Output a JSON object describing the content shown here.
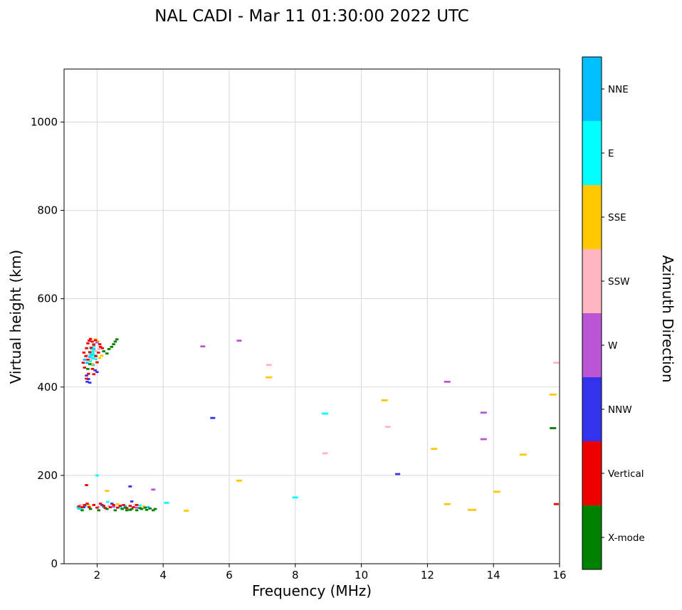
{
  "chart_data": {
    "type": "scatter",
    "title": "NAL CADI - Mar 11 01:30:00 2022 UTC",
    "xlabel": "Frequency (MHz)",
    "ylabel": "Virtual height (km)",
    "xlim": [
      1,
      16
    ],
    "ylim": [
      0,
      1120
    ],
    "xticks": [
      2,
      4,
      6,
      8,
      10,
      12,
      14,
      16
    ],
    "yticks": [
      0,
      200,
      400,
      600,
      800,
      1000
    ],
    "grid": true,
    "grid_color": "#d9d9d9",
    "colorbar": {
      "label": "Azimuth Direction",
      "categories": [
        {
          "label": "NNE",
          "color": "#00BFFF"
        },
        {
          "label": "E",
          "color": "#00FFFF"
        },
        {
          "label": "SSE",
          "color": "#FFC800"
        },
        {
          "label": "SSW",
          "color": "#FFB6C1"
        },
        {
          "label": "W",
          "color": "#BA55D3"
        },
        {
          "label": "NNW",
          "color": "#3333EE"
        },
        {
          "label": "Vertical",
          "color": "#EE0000"
        },
        {
          "label": "X-mode",
          "color": "#008000"
        }
      ]
    },
    "series": [
      {
        "name": "NNE",
        "color": "#00BFFF",
        "points": [
          [
            1.78,
            468
          ],
          [
            1.82,
            474
          ],
          [
            1.9,
            486
          ],
          [
            1.7,
            455
          ],
          [
            1.62,
            462
          ],
          [
            1.88,
            450
          ],
          [
            1.45,
            125
          ],
          [
            2.2,
            128
          ],
          [
            2.85,
            130
          ],
          [
            3.55,
            128
          ]
        ]
      },
      {
        "name": "E",
        "color": "#00FFFF",
        "points": [
          [
            1.82,
            470,
            6
          ],
          [
            1.86,
            476,
            6
          ],
          [
            1.9,
            481,
            6
          ],
          [
            1.93,
            472,
            6
          ],
          [
            1.87,
            465,
            6
          ],
          [
            1.84,
            486,
            5
          ],
          [
            1.9,
            492,
            4
          ],
          [
            1.96,
            463,
            4
          ],
          [
            1.8,
            458,
            4
          ],
          [
            1.88,
            496,
            3
          ],
          [
            1.78,
            478,
            4
          ],
          [
            1.42,
            128
          ],
          [
            1.52,
            124
          ],
          [
            1.65,
            131
          ],
          [
            2.0,
            200,
            5
          ],
          [
            2.32,
            140
          ],
          [
            3.3,
            132
          ],
          [
            4.1,
            138,
            7
          ],
          [
            2.72,
            127
          ],
          [
            8.0,
            150,
            8
          ],
          [
            8.9,
            340,
            9
          ]
        ]
      },
      {
        "name": "SSE",
        "color": "#FFC800",
        "points": [
          [
            1.86,
            452
          ],
          [
            2.08,
            466
          ],
          [
            2.14,
            471
          ],
          [
            1.95,
            508
          ],
          [
            2.02,
            504
          ],
          [
            1.75,
            133
          ],
          [
            2.3,
            165,
            6
          ],
          [
            2.62,
            135
          ],
          [
            3.42,
            130
          ],
          [
            4.7,
            120,
            7
          ],
          [
            6.3,
            188,
            8
          ],
          [
            7.2,
            422,
            9
          ],
          [
            10.7,
            370,
            9
          ],
          [
            12.2,
            260,
            9
          ],
          [
            12.6,
            135,
            9
          ],
          [
            13.35,
            122,
            12
          ],
          [
            14.1,
            163,
            10
          ],
          [
            14.9,
            247,
            10
          ],
          [
            15.8,
            383,
            10
          ]
        ]
      },
      {
        "name": "SSW",
        "color": "#FFB6C1",
        "points": [
          [
            1.8,
            462
          ],
          [
            1.96,
            481
          ],
          [
            2.06,
            486
          ],
          [
            1.7,
            472
          ],
          [
            1.5,
            133
          ],
          [
            2.05,
            129
          ],
          [
            2.36,
            131
          ],
          [
            3.15,
            133
          ],
          [
            7.2,
            450,
            8
          ],
          [
            8.9,
            250,
            8
          ],
          [
            10.8,
            310,
            8
          ],
          [
            15.9,
            455,
            8
          ]
        ]
      },
      {
        "name": "W",
        "color": "#BA55D3",
        "points": [
          [
            1.9,
            497
          ],
          [
            2.0,
            501
          ],
          [
            2.5,
            129
          ],
          [
            3.2,
            127
          ],
          [
            3.7,
            168,
            6
          ],
          [
            5.2,
            492,
            7
          ],
          [
            6.3,
            505,
            7
          ],
          [
            12.6,
            412,
            9
          ],
          [
            13.7,
            342,
            9
          ],
          [
            13.7,
            282,
            9
          ]
        ]
      },
      {
        "name": "NNW",
        "color": "#3333EE",
        "points": [
          [
            1.7,
            412
          ],
          [
            1.74,
            418
          ],
          [
            1.68,
            426
          ],
          [
            1.94,
            438
          ],
          [
            2.0,
            434
          ],
          [
            1.78,
            410
          ],
          [
            1.6,
            128
          ],
          [
            2.15,
            133
          ],
          [
            3.0,
            175,
            5
          ],
          [
            3.05,
            141
          ],
          [
            2.45,
            136
          ],
          [
            5.5,
            330,
            7
          ],
          [
            11.1,
            203,
            7
          ]
        ]
      },
      {
        "name": "Vertical",
        "color": "#EE0000",
        "points": [
          [
            1.62,
            444
          ],
          [
            1.66,
            470
          ],
          [
            1.68,
            488
          ],
          [
            1.72,
            499
          ],
          [
            1.76,
            505
          ],
          [
            1.8,
            509
          ],
          [
            1.85,
            503
          ],
          [
            1.9,
            496
          ],
          [
            1.72,
            462
          ],
          [
            1.78,
            479
          ],
          [
            1.82,
            489
          ],
          [
            1.96,
            470
          ],
          [
            2.0,
            456
          ],
          [
            1.86,
            441
          ],
          [
            1.74,
            430
          ],
          [
            1.68,
            419
          ],
          [
            1.9,
            429
          ],
          [
            2.04,
            478
          ],
          [
            2.1,
            491
          ],
          [
            1.95,
            506
          ],
          [
            2.08,
            497
          ],
          [
            1.58,
            455
          ],
          [
            1.6,
            478
          ],
          [
            2.16,
            488
          ],
          [
            1.45,
            130
          ],
          [
            1.55,
            128
          ],
          [
            1.62,
            133
          ],
          [
            1.7,
            136
          ],
          [
            1.76,
            128
          ],
          [
            1.9,
            133
          ],
          [
            2.0,
            127
          ],
          [
            2.1,
            136
          ],
          [
            2.2,
            131
          ],
          [
            2.4,
            128
          ],
          [
            2.5,
            133
          ],
          [
            2.62,
            127
          ],
          [
            2.8,
            133
          ],
          [
            2.9,
            126
          ],
          [
            3.0,
            131
          ],
          [
            3.1,
            128
          ],
          [
            1.68,
            178
          ],
          [
            2.25,
            126
          ],
          [
            2.7,
            131
          ],
          [
            3.2,
            133
          ],
          [
            15.9,
            135,
            7
          ]
        ]
      },
      {
        "name": "X-mode",
        "color": "#008000",
        "points": [
          [
            2.44,
            491
          ],
          [
            2.5,
            497
          ],
          [
            2.55,
            503
          ],
          [
            2.6,
            508
          ],
          [
            2.36,
            486
          ],
          [
            2.2,
            481
          ],
          [
            1.78,
            452
          ],
          [
            1.72,
            441
          ],
          [
            2.3,
            476
          ],
          [
            1.55,
            121
          ],
          [
            1.8,
            124
          ],
          [
            2.05,
            121
          ],
          [
            2.3,
            124
          ],
          [
            2.55,
            121
          ],
          [
            2.76,
            124
          ],
          [
            2.9,
            121
          ],
          [
            3.05,
            124
          ],
          [
            3.2,
            121
          ],
          [
            3.35,
            124
          ],
          [
            3.5,
            122
          ],
          [
            3.6,
            125
          ],
          [
            3.7,
            121
          ],
          [
            3.76,
            124
          ],
          [
            3.3,
            126
          ],
          [
            3.45,
            127
          ],
          [
            2.85,
            127
          ],
          [
            3.0,
            122
          ],
          [
            15.8,
            307,
            9
          ]
        ]
      }
    ]
  }
}
